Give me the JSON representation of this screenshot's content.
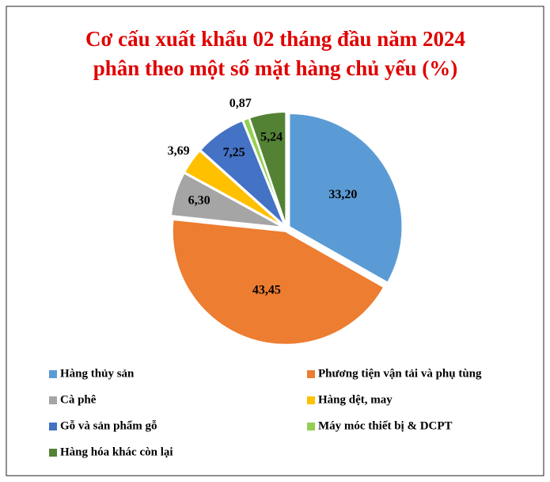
{
  "chart_data": {
    "type": "pie",
    "title": [
      "Cơ cấu xuất khẩu 02 tháng đầu năm 2024",
      "phân theo một số mặt hàng chủ yếu (%)"
    ],
    "categories": [
      "Hàng thủy sản",
      "Phương tiện vận tải và phụ tùng",
      "Cà phê",
      "Hàng dệt, may",
      "Gỗ và sản phẩm gỗ",
      "Máy móc thiết bị & DCPT",
      "Hàng hóa khác còn lại"
    ],
    "values": [
      33.2,
      43.45,
      6.3,
      3.69,
      7.25,
      0.87,
      5.24
    ],
    "value_labels": [
      "33,20",
      "43,45",
      "6,30",
      "3,69",
      "7,25",
      "0,87",
      "5,24"
    ],
    "colors": [
      "#5b9bd5",
      "#ed7d31",
      "#a5a5a5",
      "#ffc000",
      "#4472c4",
      "#92d050",
      "#548235"
    ],
    "legend": "bottom"
  }
}
